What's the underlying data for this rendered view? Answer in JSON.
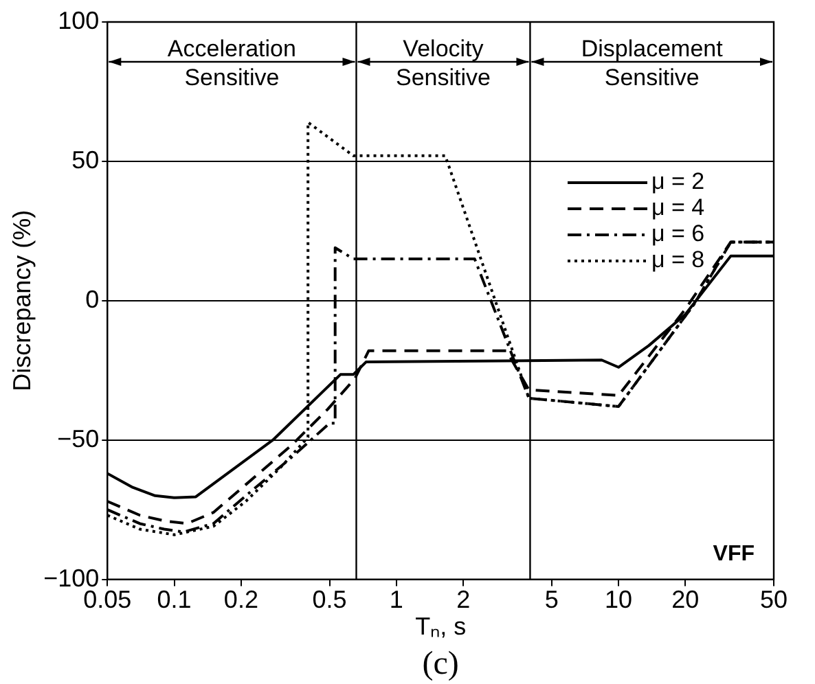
{
  "chart_data": {
    "type": "line",
    "xlabel": "Tₙ, s",
    "ylabel": "Discrepancy (%)",
    "log": "x",
    "xlim": [
      0.05,
      50
    ],
    "xticks": [
      0.05,
      0.1,
      0.2,
      0.5,
      1,
      2,
      5,
      10,
      20,
      50
    ],
    "ylim": [
      -100,
      100
    ],
    "yticks": [
      -100,
      -50,
      0,
      50,
      100
    ],
    "grid": "y",
    "legend": "top right",
    "marker": "none",
    "series": [
      {
        "name": "μ = 2",
        "color": "#000000",
        "line_style": "solid",
        "x": [
          0.05,
          0.065,
          0.082,
          0.1,
          0.125,
          0.278,
          0.56,
          0.64,
          0.73,
          8.4,
          10,
          13.7,
          20,
          32,
          50
        ],
        "values": [
          -62,
          -67,
          -70,
          -70.7,
          -70.4,
          -50,
          -26.5,
          -26.5,
          -22,
          -21.3,
          -23.9,
          -16.1,
          -4.9,
          16,
          16
        ]
      },
      {
        "name": "μ = 4",
        "color": "#000000",
        "line_style": "dashed",
        "x": [
          0.05,
          0.07,
          0.09,
          0.114,
          0.15,
          0.21,
          0.336,
          0.49,
          0.65,
          0.75,
          3.13,
          3.95,
          10,
          20,
          32,
          50
        ],
        "values": [
          -72,
          -77,
          -79,
          -80,
          -76,
          -66,
          -52,
          -39,
          -28,
          -18,
          -18,
          -32,
          -34,
          -3,
          21,
          21
        ]
      },
      {
        "name": "μ = 6",
        "color": "#000000",
        "line_style": "dashdot",
        "x": [
          0.05,
          0.07,
          0.09,
          0.11,
          0.15,
          0.21,
          0.34,
          0.5,
          0.53,
          0.53,
          0.64,
          2.25,
          3.95,
          10,
          22,
          32,
          50
        ],
        "values": [
          -75,
          -80,
          -82,
          -83,
          -80,
          -70,
          -56,
          -44,
          -44,
          19,
          15,
          15,
          -35,
          -38,
          -1,
          21,
          21
        ]
      },
      {
        "name": "μ = 8",
        "color": "#000000",
        "line_style": "dotted",
        "x": [
          0.05,
          0.07,
          0.1,
          0.15,
          0.21,
          0.3,
          0.4,
          0.4,
          0.64,
          1.66,
          3.95,
          10,
          22,
          32,
          50
        ],
        "values": [
          -77,
          -82,
          -84,
          -81,
          -72,
          -60,
          -49,
          64,
          52,
          52,
          -35,
          -38,
          -1,
          21,
          21
        ]
      }
    ],
    "ref_lines": [
      {
        "axis": "x",
        "value": 0.66
      },
      {
        "axis": "x",
        "value": 4
      }
    ],
    "annotations": [
      "Acceleration Sensitive",
      "Velocity Sensitive",
      "Displacement Sensitive",
      "VFF",
      "(c)"
    ]
  }
}
